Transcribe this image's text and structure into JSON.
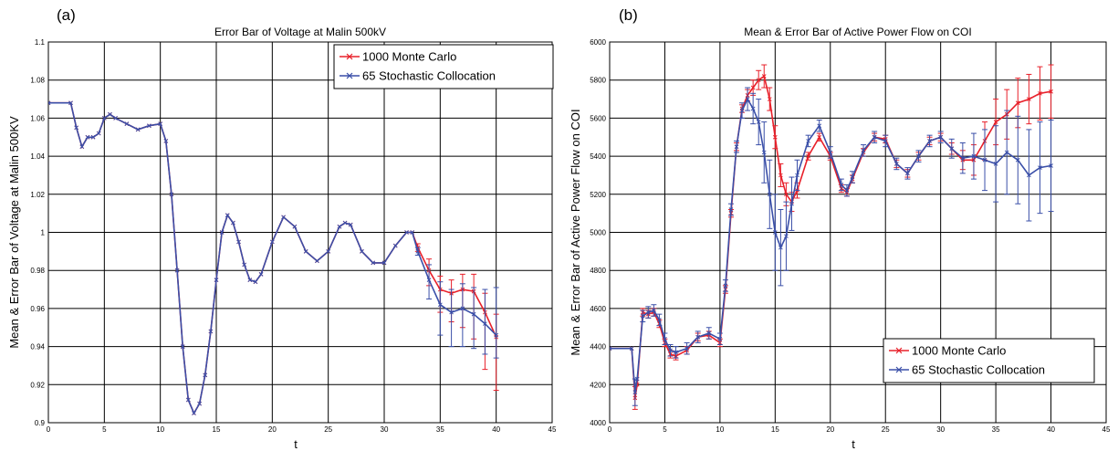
{
  "chart_data": [
    {
      "type": "line",
      "panel_label": "(a)",
      "title": "Error Bar of Voltage at Malin 500kV",
      "xlabel": "t",
      "ylabel": "Mean & Error Bar of Voltage at Malin 500KV",
      "xlim": [
        0,
        45
      ],
      "ylim": [
        0.9,
        1.1
      ],
      "xticks": [
        "0",
        "5",
        "10",
        "15",
        "20",
        "25",
        "30",
        "35",
        "40",
        "45"
      ],
      "yticks": [
        "0.9",
        "0.92",
        "0.94",
        "0.96",
        "0.98",
        "1",
        "1.02",
        "1.04",
        "1.06",
        "1.08",
        "1.1"
      ],
      "grid": true,
      "legend_position": "top-right",
      "series": [
        {
          "name": "1000 Monte Carlo",
          "color": "#e8202a",
          "marker": "x",
          "x": [
            0,
            2,
            2.5,
            3,
            3.5,
            4,
            4.5,
            5,
            5.5,
            6,
            7,
            8,
            9,
            10,
            10.5,
            11,
            11.5,
            12,
            12.5,
            13,
            13.5,
            14,
            14.5,
            15,
            15.5,
            16,
            16.5,
            17,
            17.5,
            18,
            18.5,
            19,
            20,
            21,
            22,
            23,
            24,
            25,
            26,
            26.5,
            27,
            28,
            29,
            30,
            31,
            32,
            32.5,
            33,
            34,
            35,
            36,
            37,
            38,
            39,
            40
          ],
          "y": [
            1.068,
            1.068,
            1.055,
            1.045,
            1.05,
            1.05,
            1.052,
            1.06,
            1.062,
            1.06,
            1.057,
            1.054,
            1.056,
            1.057,
            1.048,
            1.02,
            0.98,
            0.94,
            0.912,
            0.905,
            0.91,
            0.925,
            0.948,
            0.975,
            1.0,
            1.009,
            1.005,
            0.995,
            0.983,
            0.975,
            0.974,
            0.978,
            0.995,
            1.008,
            1.003,
            0.99,
            0.985,
            0.99,
            1.003,
            1.005,
            1.004,
            0.99,
            0.984,
            0.984,
            0.993,
            1.0,
            1.0,
            0.992,
            0.98,
            0.97,
            0.968,
            0.97,
            0.969,
            0.958,
            0.945
          ],
          "error_low": [
            0,
            0,
            0,
            0,
            0,
            0,
            0,
            0,
            0,
            0,
            0,
            0,
            0,
            0,
            0,
            0,
            0,
            0,
            0,
            0,
            0,
            0,
            0,
            0,
            0,
            0,
            0,
            0,
            0,
            0,
            0,
            0,
            0,
            0,
            0,
            0,
            0,
            0,
            0,
            0,
            0,
            0,
            0,
            0,
            0,
            0,
            0,
            0.002,
            0.008,
            0.012,
            0.015,
            0.02,
            0.025,
            0.03,
            0.028
          ],
          "error_high": [
            0,
            0,
            0,
            0,
            0,
            0,
            0,
            0,
            0,
            0,
            0,
            0,
            0,
            0,
            0,
            0,
            0,
            0,
            0,
            0,
            0,
            0,
            0,
            0,
            0,
            0,
            0,
            0,
            0,
            0,
            0,
            0,
            0,
            0,
            0,
            0,
            0,
            0,
            0,
            0,
            0,
            0,
            0,
            0,
            0,
            0,
            0,
            0.002,
            0.006,
            0.007,
            0.007,
            0.008,
            0.009,
            0.01,
            0.012
          ]
        },
        {
          "name": "65 Stochastic Collocation",
          "color": "#3a4fa8",
          "marker": "x",
          "x": [
            0,
            2,
            2.5,
            3,
            3.5,
            4,
            4.5,
            5,
            5.5,
            6,
            7,
            8,
            9,
            10,
            10.5,
            11,
            11.5,
            12,
            12.5,
            13,
            13.5,
            14,
            14.5,
            15,
            15.5,
            16,
            16.5,
            17,
            17.5,
            18,
            18.5,
            19,
            20,
            21,
            22,
            23,
            24,
            25,
            26,
            26.5,
            27,
            28,
            29,
            30,
            31,
            32,
            32.5,
            33,
            34,
            35,
            36,
            37,
            38,
            39,
            40
          ],
          "y": [
            1.068,
            1.068,
            1.055,
            1.045,
            1.05,
            1.05,
            1.052,
            1.06,
            1.062,
            1.06,
            1.057,
            1.054,
            1.056,
            1.057,
            1.048,
            1.02,
            0.98,
            0.94,
            0.912,
            0.905,
            0.91,
            0.925,
            0.948,
            0.975,
            1.0,
            1.009,
            1.005,
            0.995,
            0.983,
            0.975,
            0.974,
            0.978,
            0.995,
            1.008,
            1.003,
            0.99,
            0.985,
            0.99,
            1.003,
            1.005,
            1.004,
            0.99,
            0.984,
            0.984,
            0.993,
            1.0,
            1.0,
            0.99,
            0.975,
            0.962,
            0.958,
            0.96,
            0.957,
            0.952,
            0.946
          ],
          "error_low": [
            0,
            0,
            0,
            0,
            0,
            0,
            0,
            0,
            0,
            0,
            0,
            0,
            0,
            0,
            0,
            0,
            0,
            0,
            0,
            0,
            0,
            0,
            0,
            0,
            0,
            0,
            0,
            0,
            0,
            0,
            0,
            0,
            0,
            0,
            0,
            0,
            0,
            0,
            0,
            0,
            0,
            0,
            0,
            0,
            0,
            0,
            0,
            0.002,
            0.01,
            0.016,
            0.018,
            0.02,
            0.018,
            0.016,
            0.012
          ],
          "error_high": [
            0,
            0,
            0,
            0,
            0,
            0,
            0,
            0,
            0,
            0,
            0,
            0,
            0,
            0,
            0,
            0,
            0,
            0,
            0,
            0,
            0,
            0,
            0,
            0,
            0,
            0,
            0,
            0,
            0,
            0,
            0,
            0,
            0,
            0,
            0,
            0,
            0,
            0,
            0,
            0,
            0,
            0,
            0,
            0,
            0,
            0,
            0,
            0.002,
            0.008,
            0.012,
            0.012,
            0.013,
            0.014,
            0.018,
            0.025
          ]
        }
      ]
    },
    {
      "type": "line",
      "panel_label": "(b)",
      "title": "Mean & Error Bar of Active Power Flow on COI",
      "xlabel": "t",
      "ylabel": "Mean & Error Bar of Active Power Flow on COI",
      "xlim": [
        0,
        45
      ],
      "ylim": [
        4000,
        6000
      ],
      "xticks": [
        "0",
        "5",
        "10",
        "15",
        "20",
        "25",
        "30",
        "35",
        "40",
        "45"
      ],
      "yticks": [
        "4000",
        "4200",
        "4400",
        "4600",
        "4800",
        "5000",
        "5200",
        "5400",
        "5600",
        "5800",
        "6000"
      ],
      "grid": true,
      "legend_position": "bottom-right",
      "series": [
        {
          "name": "1000 Monte Carlo",
          "color": "#e8202a",
          "marker": "x",
          "x": [
            0,
            2,
            2.3,
            2.5,
            3,
            3.5,
            4,
            4.5,
            5,
            5.5,
            6,
            7,
            8,
            9,
            10,
            10.5,
            11,
            11.5,
            12,
            12.5,
            13,
            13.5,
            14,
            14.5,
            15,
            15.5,
            16,
            16.5,
            17,
            18,
            19,
            20,
            21,
            21.5,
            22,
            23,
            24,
            25,
            26,
            27,
            28,
            29,
            30,
            31,
            32,
            33,
            34,
            35,
            36,
            37,
            38,
            39,
            40
          ],
          "y": [
            4390,
            4390,
            4130,
            4200,
            4580,
            4570,
            4580,
            4520,
            4420,
            4360,
            4350,
            4380,
            4450,
            4460,
            4420,
            4700,
            5100,
            5450,
            5650,
            5720,
            5760,
            5800,
            5820,
            5700,
            5500,
            5300,
            5200,
            5160,
            5220,
            5400,
            5500,
            5400,
            5230,
            5210,
            5280,
            5420,
            5500,
            5490,
            5360,
            5310,
            5400,
            5480,
            5500,
            5440,
            5380,
            5380,
            5480,
            5580,
            5620,
            5680,
            5700,
            5730,
            5740
          ],
          "error_low": [
            0,
            0,
            60,
            0,
            20,
            20,
            20,
            20,
            20,
            20,
            20,
            20,
            20,
            20,
            20,
            20,
            20,
            20,
            20,
            30,
            40,
            50,
            60,
            60,
            60,
            60,
            60,
            50,
            40,
            20,
            20,
            20,
            20,
            20,
            20,
            20,
            20,
            20,
            20,
            20,
            20,
            20,
            20,
            30,
            50,
            80,
            100,
            120,
            130,
            130,
            130,
            140,
            140
          ],
          "error_high": [
            0,
            0,
            60,
            0,
            20,
            20,
            20,
            20,
            20,
            20,
            20,
            20,
            20,
            20,
            20,
            20,
            20,
            20,
            20,
            30,
            40,
            50,
            60,
            60,
            60,
            60,
            60,
            50,
            40,
            20,
            20,
            20,
            20,
            20,
            20,
            20,
            20,
            20,
            20,
            20,
            20,
            20,
            20,
            30,
            50,
            80,
            100,
            120,
            130,
            130,
            130,
            140,
            140
          ]
        },
        {
          "name": "65 Stochastic Collocation",
          "color": "#3a4fa8",
          "marker": "x",
          "x": [
            0,
            2,
            2.3,
            2.5,
            3,
            3.5,
            4,
            4.5,
            5,
            5.5,
            6,
            7,
            8,
            9,
            10,
            10.5,
            11,
            11.5,
            12,
            12.5,
            13,
            13.5,
            14,
            14.5,
            15,
            15.5,
            16,
            16.5,
            17,
            18,
            19,
            20,
            21,
            21.5,
            22,
            23,
            24,
            25,
            26,
            27,
            28,
            29,
            30,
            31,
            32,
            33,
            34,
            35,
            36,
            37,
            38,
            39,
            40
          ],
          "y": [
            4390,
            4390,
            4160,
            4230,
            4560,
            4580,
            4590,
            4540,
            4440,
            4380,
            4370,
            4390,
            4450,
            4470,
            4440,
            4720,
            5120,
            5450,
            5640,
            5700,
            5650,
            5580,
            5420,
            5200,
            5000,
            4920,
            4980,
            5150,
            5300,
            5480,
            5560,
            5420,
            5250,
            5220,
            5290,
            5430,
            5500,
            5480,
            5360,
            5310,
            5400,
            5480,
            5500,
            5440,
            5390,
            5400,
            5380,
            5360,
            5420,
            5380,
            5300,
            5340,
            5350
          ],
          "error_low": [
            0,
            0,
            70,
            0,
            30,
            30,
            30,
            30,
            30,
            30,
            30,
            30,
            30,
            30,
            30,
            30,
            30,
            30,
            40,
            60,
            80,
            120,
            160,
            180,
            200,
            200,
            180,
            140,
            80,
            30,
            30,
            30,
            30,
            30,
            30,
            30,
            30,
            30,
            30,
            30,
            30,
            30,
            30,
            50,
            80,
            120,
            160,
            200,
            220,
            230,
            240,
            240,
            240
          ],
          "error_high": [
            0,
            0,
            70,
            0,
            30,
            30,
            30,
            30,
            30,
            30,
            30,
            30,
            30,
            30,
            30,
            30,
            30,
            30,
            40,
            60,
            80,
            120,
            160,
            180,
            200,
            200,
            180,
            140,
            80,
            30,
            30,
            30,
            30,
            30,
            30,
            30,
            30,
            30,
            30,
            30,
            30,
            30,
            30,
            50,
            80,
            120,
            160,
            200,
            220,
            230,
            240,
            240,
            240
          ]
        }
      ]
    }
  ]
}
